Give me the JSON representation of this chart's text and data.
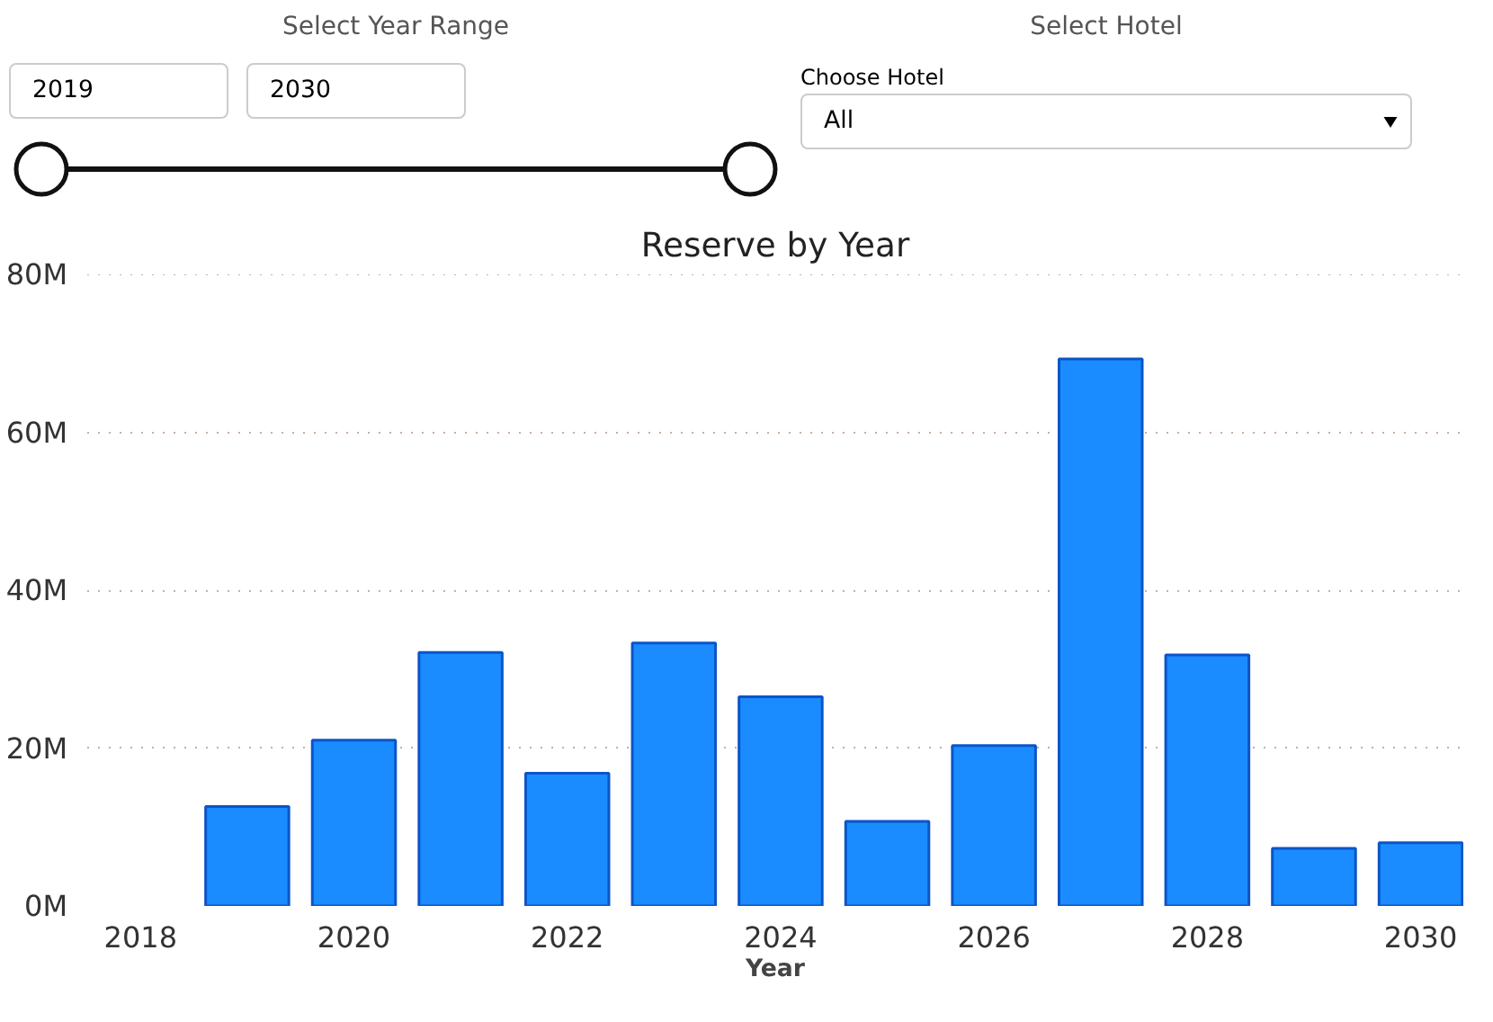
{
  "chart_data": {
    "type": "bar",
    "title": "Reserve by Year",
    "xlabel": "Year",
    "annotations": [
      "Select Year Range",
      "2019",
      "2030",
      "Select Hotel",
      "Choose Hotel",
      "All"
    ],
    "x": [
      2019,
      2020,
      2021,
      2022,
      2023,
      2024,
      2025,
      2026,
      2027,
      2028,
      2029,
      2030
    ],
    "values": [
      12.6,
      21.0,
      32.1,
      16.8,
      33.3,
      26.5,
      10.7,
      20.3,
      69.3,
      31.8,
      7.3,
      8.0
    ],
    "color": "#1a8cff",
    "xlim": [
      2017.5,
      2030.4
    ],
    "xticks": [
      2018,
      2020,
      2022,
      2024,
      2026,
      2028,
      2030
    ],
    "ylim": [
      0,
      80
    ],
    "yticks": [
      {
        "value": 0,
        "label": "0M"
      },
      {
        "value": 20,
        "label": "20M"
      },
      {
        "value": 40,
        "label": "40M"
      },
      {
        "value": 60,
        "label": "60M"
      },
      {
        "value": 80,
        "label": "80M"
      }
    ],
    "grid": "y"
  }
}
